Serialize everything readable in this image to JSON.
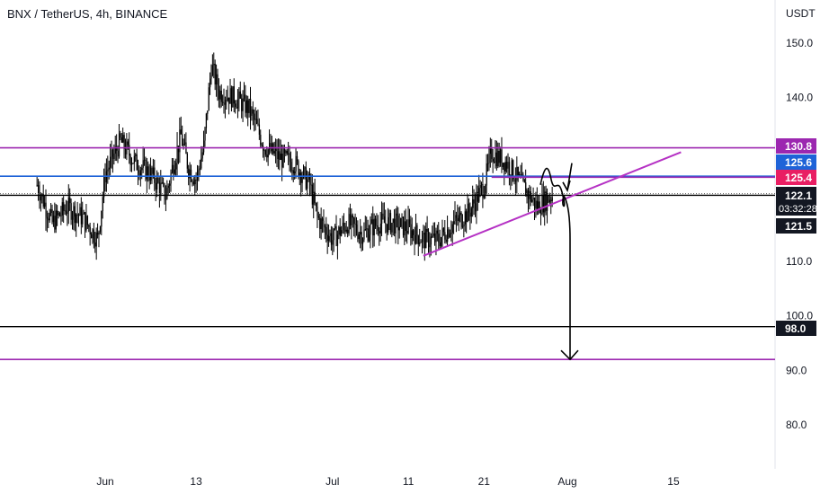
{
  "header": {
    "title": "BNX / TetherUS, 4h, BINANCE"
  },
  "colors": {
    "candle": "#000000",
    "purple": "#9c27b0",
    "blue": "#1e63d8",
    "red": "#e91e63",
    "dark": "#131722",
    "annotation": "#000000",
    "trendline": "#b531c4"
  },
  "chart_data": {
    "type": "candlestick",
    "symbol": "BNX / TetherUS",
    "interval": "4h",
    "exchange": "BINANCE",
    "y_axis": {
      "unit": "USDT",
      "ylim": [
        75,
        157
      ],
      "ticks": [
        "150.0",
        "140.0",
        "110.0",
        "100.0",
        "90.0",
        "80.0"
      ],
      "tick_values": [
        150,
        140,
        110,
        100,
        90,
        80
      ]
    },
    "x_axis": {
      "ticks": [
        "Jun",
        "13",
        "Jul",
        "11",
        "21",
        "Aug",
        "15"
      ],
      "tick_dates": [
        "2022-06-01",
        "2022-06-13",
        "2022-07-01",
        "2022-07-11",
        "2022-07-21",
        "2022-08-01",
        "2022-08-15"
      ],
      "range": [
        "2022-05-23",
        "2022-08-21"
      ]
    },
    "close_path": [
      [
        "2022-05-23",
        124
      ],
      [
        "2022-05-25",
        117
      ],
      [
        "2022-05-27",
        120
      ],
      [
        "2022-05-29",
        118
      ],
      [
        "2022-05-31",
        114
      ],
      [
        "2022-06-01",
        126
      ],
      [
        "2022-06-03",
        132
      ],
      [
        "2022-06-05",
        128
      ],
      [
        "2022-06-07",
        126
      ],
      [
        "2022-06-09",
        122
      ],
      [
        "2022-06-10",
        128
      ],
      [
        "2022-06-11",
        133
      ],
      [
        "2022-06-12",
        127
      ],
      [
        "2022-06-13",
        125
      ],
      [
        "2022-06-14",
        131
      ],
      [
        "2022-06-15",
        146
      ],
      [
        "2022-06-16",
        141
      ],
      [
        "2022-06-18",
        140
      ],
      [
        "2022-06-20",
        138
      ],
      [
        "2022-06-22",
        131
      ],
      [
        "2022-06-24",
        129
      ],
      [
        "2022-06-26",
        128
      ],
      [
        "2022-06-28",
        124
      ],
      [
        "2022-06-29",
        118
      ],
      [
        "2022-07-01",
        114
      ],
      [
        "2022-07-03",
        117
      ],
      [
        "2022-07-05",
        115
      ],
      [
        "2022-07-07",
        117
      ],
      [
        "2022-07-09",
        117
      ],
      [
        "2022-07-11",
        116
      ],
      [
        "2022-07-13",
        114
      ],
      [
        "2022-07-15",
        114
      ],
      [
        "2022-07-17",
        117
      ],
      [
        "2022-07-19",
        119
      ],
      [
        "2022-07-21",
        124
      ],
      [
        "2022-07-22",
        130
      ],
      [
        "2022-07-24",
        128
      ],
      [
        "2022-07-26",
        124
      ],
      [
        "2022-07-28",
        120
      ],
      [
        "2022-07-30",
        122.1
      ]
    ],
    "horizontal_levels": [
      {
        "label": "130.8",
        "value": 130.8,
        "style": "purple",
        "line": "purple"
      },
      {
        "label": "125.6",
        "value": 125.6,
        "style": "blue",
        "line": "blue"
      },
      {
        "label": "125.4",
        "value": 125.4,
        "style": "red",
        "line": "red-short"
      },
      {
        "label": "122.1",
        "value": 122.1,
        "style": "dark",
        "line": "black"
      },
      {
        "label": "121.5",
        "value": 121.5,
        "style": "dark",
        "line": "none"
      },
      {
        "label": "98.0",
        "value": 98.0,
        "style": "dark",
        "line": "black"
      },
      {
        "label": "",
        "value": 92.0,
        "style": "none",
        "line": "purple"
      }
    ],
    "countdown": "03:32:28",
    "trendline": {
      "from": [
        "2022-07-13",
        111.0
      ],
      "to": [
        "2022-08-16",
        130.0
      ]
    },
    "projection": {
      "from": [
        "2022-08-01",
        120.5
      ],
      "to": [
        "2022-08-01",
        92.0
      ]
    }
  }
}
